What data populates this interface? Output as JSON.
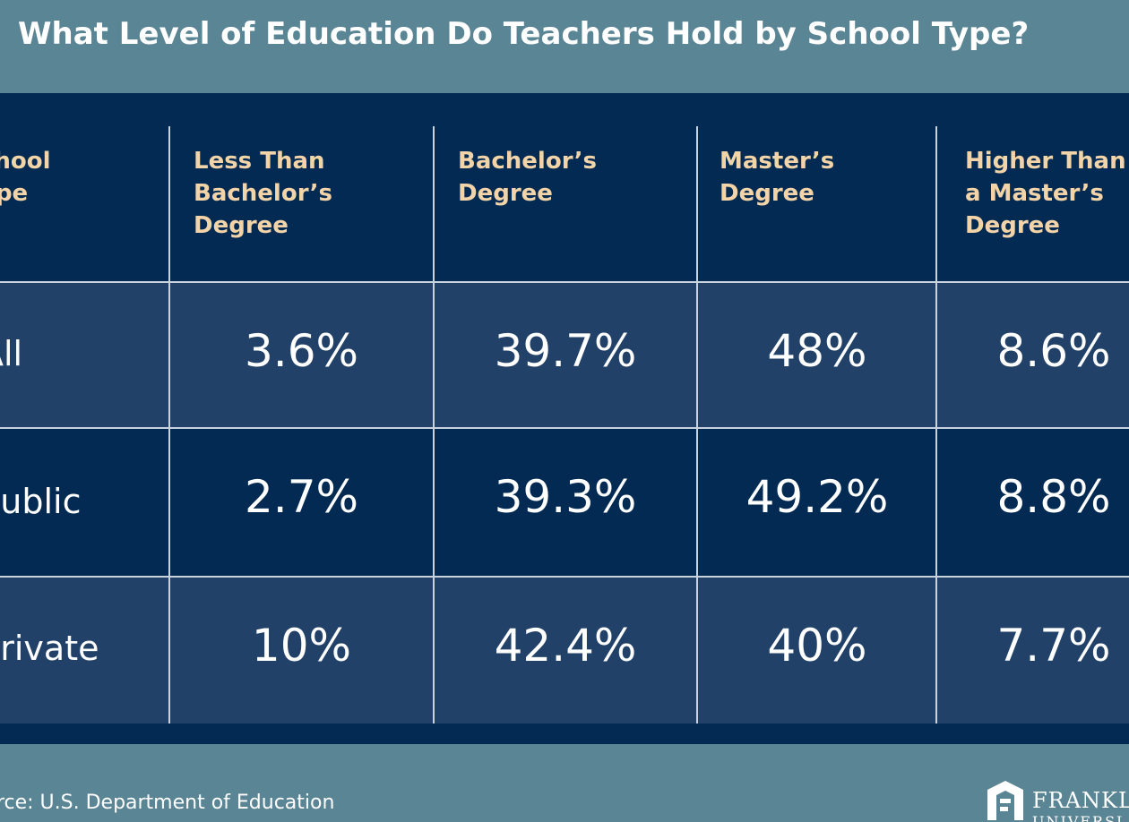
{
  "title": "What Level of Education Do Teachers Hold by School Type?",
  "chart_data": {
    "type": "table",
    "title": "What Level of Education Do Teachers Hold by School Type?",
    "columns": [
      "chool\nype",
      "Less Than\nBachelor’s\nDegree",
      "Bachelor’s\nDegree",
      "Master’s\nDegree",
      "Higher Than\na Master’s\nDegree"
    ],
    "rows": [
      {
        "label": "All",
        "values": [
          "3.6%",
          "39.7%",
          "48%",
          "8.6%"
        ]
      },
      {
        "label": "Public",
        "values": [
          "2.7%",
          "39.3%",
          "49.2%",
          "8.8%"
        ]
      },
      {
        "label": "Private",
        "values": [
          "10%",
          "42.4%",
          "40%",
          "7.7%"
        ]
      }
    ]
  },
  "source": "urce: U.S. Department of Education",
  "logo": {
    "text": "FRANKLI",
    "subtext": "UNIVERSI"
  },
  "colors": {
    "background": "#5a8594",
    "table_dark": "#032a52",
    "table_light": "#224168",
    "header_text": "#f3d4a8",
    "value_text": "#ffffff"
  }
}
